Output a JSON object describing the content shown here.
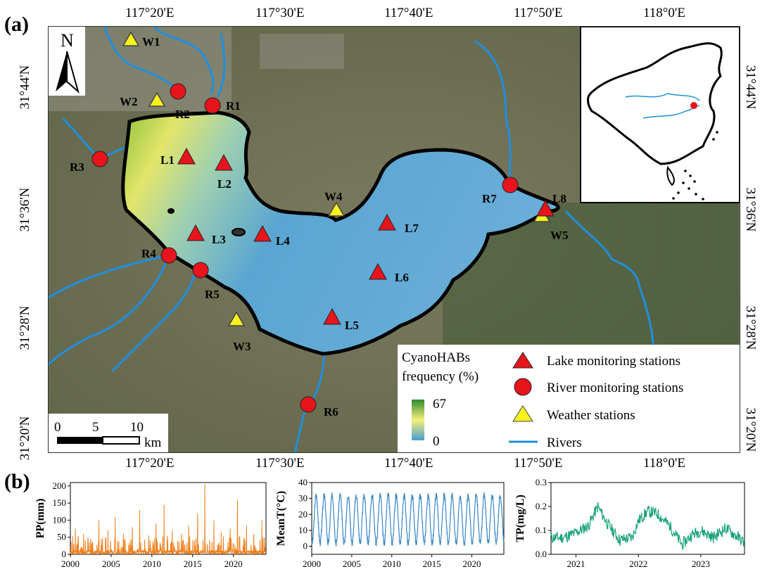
{
  "panels": {
    "a": "(a)",
    "b": "(b)"
  },
  "map": {
    "top_lon_labels": [
      "117°20'E",
      "117°30'E",
      "117°40'E",
      "117°50'E",
      "118°0'E"
    ],
    "bottom_lon_labels": [
      "117°20'E",
      "117°30'E",
      "117°40'E",
      "117°50'E",
      "118°0'E"
    ],
    "left_lat_labels": [
      "31°44'N",
      "31°36'N",
      "31°28'N",
      "31°20'N"
    ],
    "right_lat_labels": [
      "31°44'N",
      "31°36'N",
      "31°28'N",
      "31°20'N"
    ],
    "north_arrow": "N",
    "scale_bar": {
      "ticks": [
        "0",
        "5",
        "10"
      ],
      "unit": "km"
    },
    "lake_stations": [
      "L1",
      "L2",
      "L3",
      "L4",
      "L5",
      "L6",
      "L7",
      "L8"
    ],
    "river_stations": [
      "R1",
      "R2",
      "R3",
      "R4",
      "R5",
      "R6",
      "R7"
    ],
    "weather_stations": [
      "W1",
      "W2",
      "W3",
      "W4",
      "W5"
    ],
    "colorbar": {
      "title_line1": "CyanoHABs",
      "title_line2": "frequency (%)",
      "max": "67",
      "min": "0",
      "colors": [
        "#2e8b2e",
        "#f5f07a",
        "#4a9fd0"
      ]
    },
    "legend": {
      "lake": "Lake monitoring stations",
      "river": "River monitoring stations",
      "weather": "Weather stations",
      "rivers": "Rivers"
    },
    "colors": {
      "lake_marker": "#e8141c",
      "river_marker": "#e8141c",
      "weather_marker": "#f7f21c",
      "river_line": "#1f8fe0"
    }
  },
  "chart_data": [
    {
      "type": "line",
      "ylabel": "PP(mm)",
      "xticks": [
        "2000",
        "2005",
        "2010",
        "2015",
        "2020"
      ],
      "yticks": [
        "0",
        "50",
        "100",
        "150",
        "200"
      ],
      "xlim": [
        2000,
        2024
      ],
      "ylim": [
        0,
        210
      ],
      "color": "#f07f1c",
      "peaks": [
        [
          2000.6,
          75
        ],
        [
          2001.6,
          60
        ],
        [
          2002.5,
          45
        ],
        [
          2003.5,
          100
        ],
        [
          2004.6,
          70
        ],
        [
          2005.5,
          110
        ],
        [
          2006.5,
          60
        ],
        [
          2007.6,
          80
        ],
        [
          2008.5,
          130
        ],
        [
          2009.6,
          55
        ],
        [
          2010.5,
          90
        ],
        [
          2011.5,
          145
        ],
        [
          2012.5,
          70
        ],
        [
          2013.6,
          60
        ],
        [
          2014.5,
          85
        ],
        [
          2015.6,
          120
        ],
        [
          2016.5,
          205
        ],
        [
          2017.6,
          100
        ],
        [
          2018.5,
          65
        ],
        [
          2019.6,
          75
        ],
        [
          2020.5,
          160
        ],
        [
          2021.6,
          85
        ],
        [
          2022.5,
          60
        ],
        [
          2023.5,
          100
        ]
      ]
    },
    {
      "type": "line",
      "ylabel": "MeanT(°C)",
      "xticks": [
        "2000",
        "2005",
        "2010",
        "2015",
        "2020"
      ],
      "yticks": [
        "0",
        "10",
        "20",
        "30",
        "40"
      ],
      "xlim": [
        2000,
        2024
      ],
      "ylim": [
        -5,
        40
      ],
      "color": "#3a86c8",
      "annual_min": 2,
      "annual_max": 32
    },
    {
      "type": "line",
      "ylabel": "TP(mg/L)",
      "xticks": [
        "2021",
        "2022",
        "2023"
      ],
      "yticks": [
        "0.0",
        "0.1",
        "0.2",
        "0.3"
      ],
      "xlim": [
        2020.6,
        2023.7
      ],
      "ylim": [
        0,
        0.3
      ],
      "color": "#1aa37a",
      "x": [
        2020.6,
        2020.8,
        2021.0,
        2021.2,
        2021.35,
        2021.5,
        2021.7,
        2021.9,
        2022.0,
        2022.15,
        2022.3,
        2022.5,
        2022.7,
        2022.85,
        2023.0,
        2023.2,
        2023.4,
        2023.6,
        2023.7
      ],
      "y": [
        0.07,
        0.07,
        0.09,
        0.12,
        0.2,
        0.13,
        0.06,
        0.07,
        0.14,
        0.18,
        0.17,
        0.12,
        0.04,
        0.08,
        0.1,
        0.07,
        0.11,
        0.07,
        0.05
      ]
    }
  ]
}
